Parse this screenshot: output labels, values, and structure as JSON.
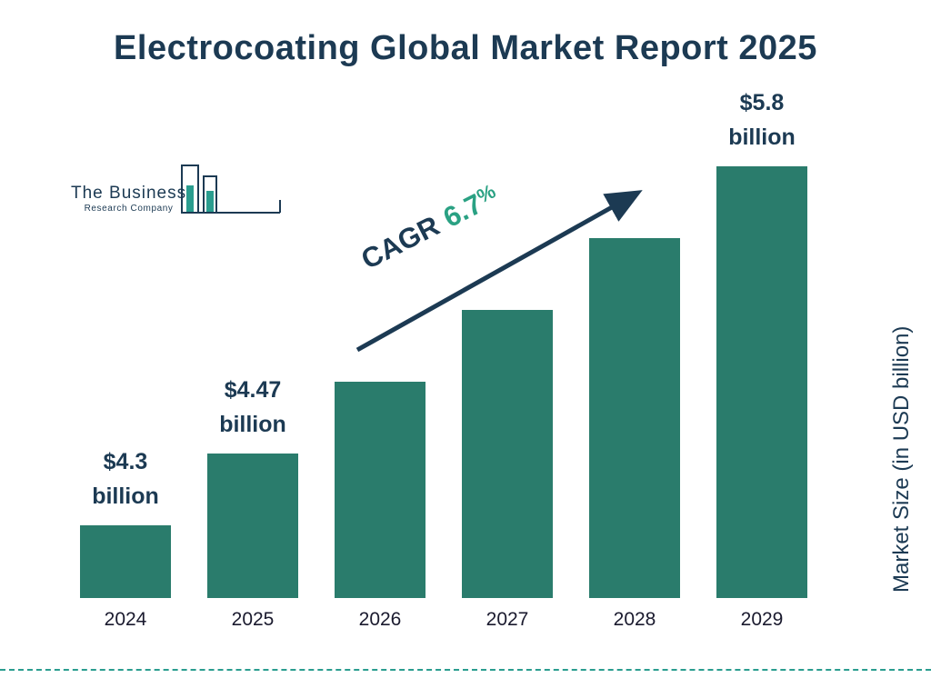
{
  "title": "Electrocoating Global Market Report 2025",
  "logo": {
    "line1": "The Business",
    "line2": "Research Company"
  },
  "cagr": {
    "prefix": "CAGR",
    "value": "6.7",
    "percent": "%"
  },
  "ylabel": "Market Size (in USD billion)",
  "chart_data": {
    "type": "bar",
    "title": "Electrocoating Global Market Report 2025",
    "categories": [
      "2024",
      "2025",
      "2026",
      "2027",
      "2028",
      "2029"
    ],
    "values": [
      4.3,
      4.47,
      4.77,
      5.09,
      5.43,
      5.8
    ],
    "bar_color": "#2a7c6c",
    "cagr_percent": 6.7,
    "xlabel": "",
    "ylabel": "Market Size (in USD billion)",
    "legend": "none",
    "grid": false,
    "bars": [
      {
        "year": "2024",
        "label_line1": "$4.3",
        "label_line2": "billion"
      },
      {
        "year": "2025",
        "label_line1": "$4.47",
        "label_line2": "billion"
      },
      {
        "year": "2026",
        "label_line1": "",
        "label_line2": ""
      },
      {
        "year": "2027",
        "label_line1": "",
        "label_line2": ""
      },
      {
        "year": "2028",
        "label_line1": "",
        "label_line2": ""
      },
      {
        "year": "2029",
        "label_line1": "$5.8",
        "label_line2": "billion"
      }
    ]
  }
}
